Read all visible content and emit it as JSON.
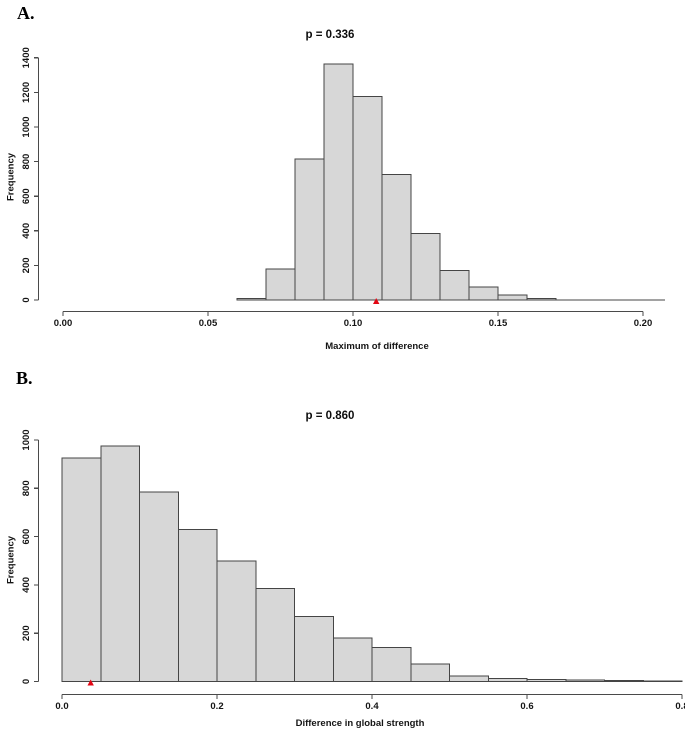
{
  "figure": {
    "background": "#ffffff",
    "panels": [
      {
        "letter": "A.",
        "title": "p = 0.336",
        "xlabel": "Maximum of difference",
        "ylabel": "Frequency"
      },
      {
        "letter": "B.",
        "title": "p = 0.860",
        "xlabel": "Difference in global strength",
        "ylabel": "Frequency"
      }
    ]
  },
  "chart_data": [
    {
      "type": "bar",
      "subtype": "histogram",
      "title": "p = 0.336",
      "xlabel": "Maximum of difference",
      "ylabel": "Frequency",
      "bin_start": 0.06,
      "bin_width": 0.01,
      "values": [
        8,
        180,
        815,
        1365,
        1175,
        725,
        385,
        170,
        75,
        30,
        10
      ],
      "x_ticks": [
        0,
        0.05,
        0.1,
        0.15,
        0.2
      ],
      "x_tick_labels": [
        "0.00",
        "0.05",
        "0.10",
        "0.15",
        "0.20"
      ],
      "y_ticks": [
        0,
        200,
        400,
        600,
        800,
        1000,
        1200,
        1400
      ],
      "y_tick_labels": [
        "0",
        "200",
        "400",
        "600",
        "800",
        "1000",
        "1200",
        "1400"
      ],
      "xlim": [
        0,
        0.2075
      ],
      "ylim": [
        0,
        1400
      ],
      "baseline_extent": [
        0.06,
        0.2075
      ],
      "observed_marker": {
        "x": 0.108,
        "color": "#e30613",
        "shape": "triangle-up"
      },
      "grid": false,
      "legend": null,
      "bar_fill": "#d7d7d7",
      "bar_stroke": "#454545"
    },
    {
      "type": "bar",
      "subtype": "histogram",
      "title": "p = 0.860",
      "xlabel": "Difference in global strength",
      "ylabel": "Frequency",
      "bin_start": 0,
      "bin_width": 0.05,
      "values": [
        925,
        975,
        785,
        630,
        500,
        385,
        270,
        180,
        140,
        72,
        23,
        13,
        8,
        6,
        4,
        3
      ],
      "x_ticks": [
        0,
        0.2,
        0.4,
        0.6,
        0.8
      ],
      "x_tick_labels": [
        "0.0",
        "0.2",
        "0.4",
        "0.6",
        "0.8"
      ],
      "y_ticks": [
        0,
        200,
        400,
        600,
        800,
        1000
      ],
      "y_tick_labels": [
        "0",
        "200",
        "400",
        "600",
        "800",
        "1000"
      ],
      "xlim": [
        0,
        0.8
      ],
      "ylim": [
        0,
        1000
      ],
      "baseline_extent": [
        0,
        0.8
      ],
      "observed_marker": {
        "x": 0.037,
        "color": "#e30613",
        "shape": "triangle-up"
      },
      "grid": false,
      "legend": null,
      "bar_fill": "#d7d7d7",
      "bar_stroke": "#454545"
    }
  ]
}
